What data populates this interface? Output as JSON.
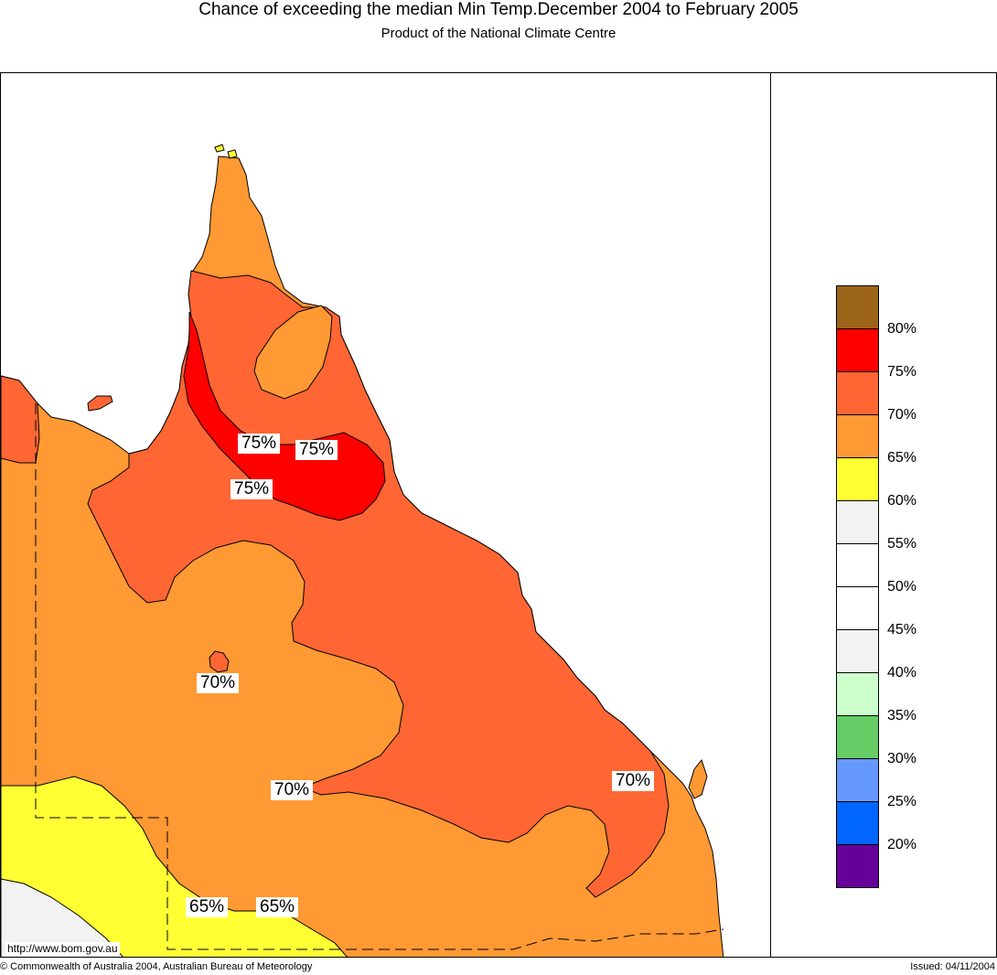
{
  "title": "Chance of exceeding the median Min Temp.December 2004 to February 2005",
  "subtitle": "Product of the National Climate Centre",
  "legend": {
    "swatches": [
      {
        "color": "#9c6418"
      },
      {
        "color": "#ff0000"
      },
      {
        "color": "#ff6633"
      },
      {
        "color": "#ff9933"
      },
      {
        "color": "#ffff33"
      },
      {
        "color": "#f2f2f2"
      },
      {
        "color": "#ffffff"
      },
      {
        "color": "#ffffff"
      },
      {
        "color": "#f2f2f2"
      },
      {
        "color": "#ccffcc"
      },
      {
        "color": "#66cc66"
      },
      {
        "color": "#6699ff"
      },
      {
        "color": "#0066ff"
      },
      {
        "color": "#660099"
      }
    ],
    "labels": [
      "80%",
      "75%",
      "70%",
      "65%",
      "60%",
      "55%",
      "50%",
      "45%",
      "40%",
      "35%",
      "30%",
      "25%",
      "20%"
    ]
  },
  "map_labels": {
    "l1": "75%",
    "l2": "75%",
    "l3": "75%",
    "l4": "70%",
    "l5": "70%",
    "l6": "70%",
    "l7": "65%",
    "l8": "65%"
  },
  "url": "http://www.bom.gov.au",
  "copyright": "© Commonwealth of Australia 2004, Australian Bureau of Meteorology",
  "issued": "Issued: 04/11/2004"
}
